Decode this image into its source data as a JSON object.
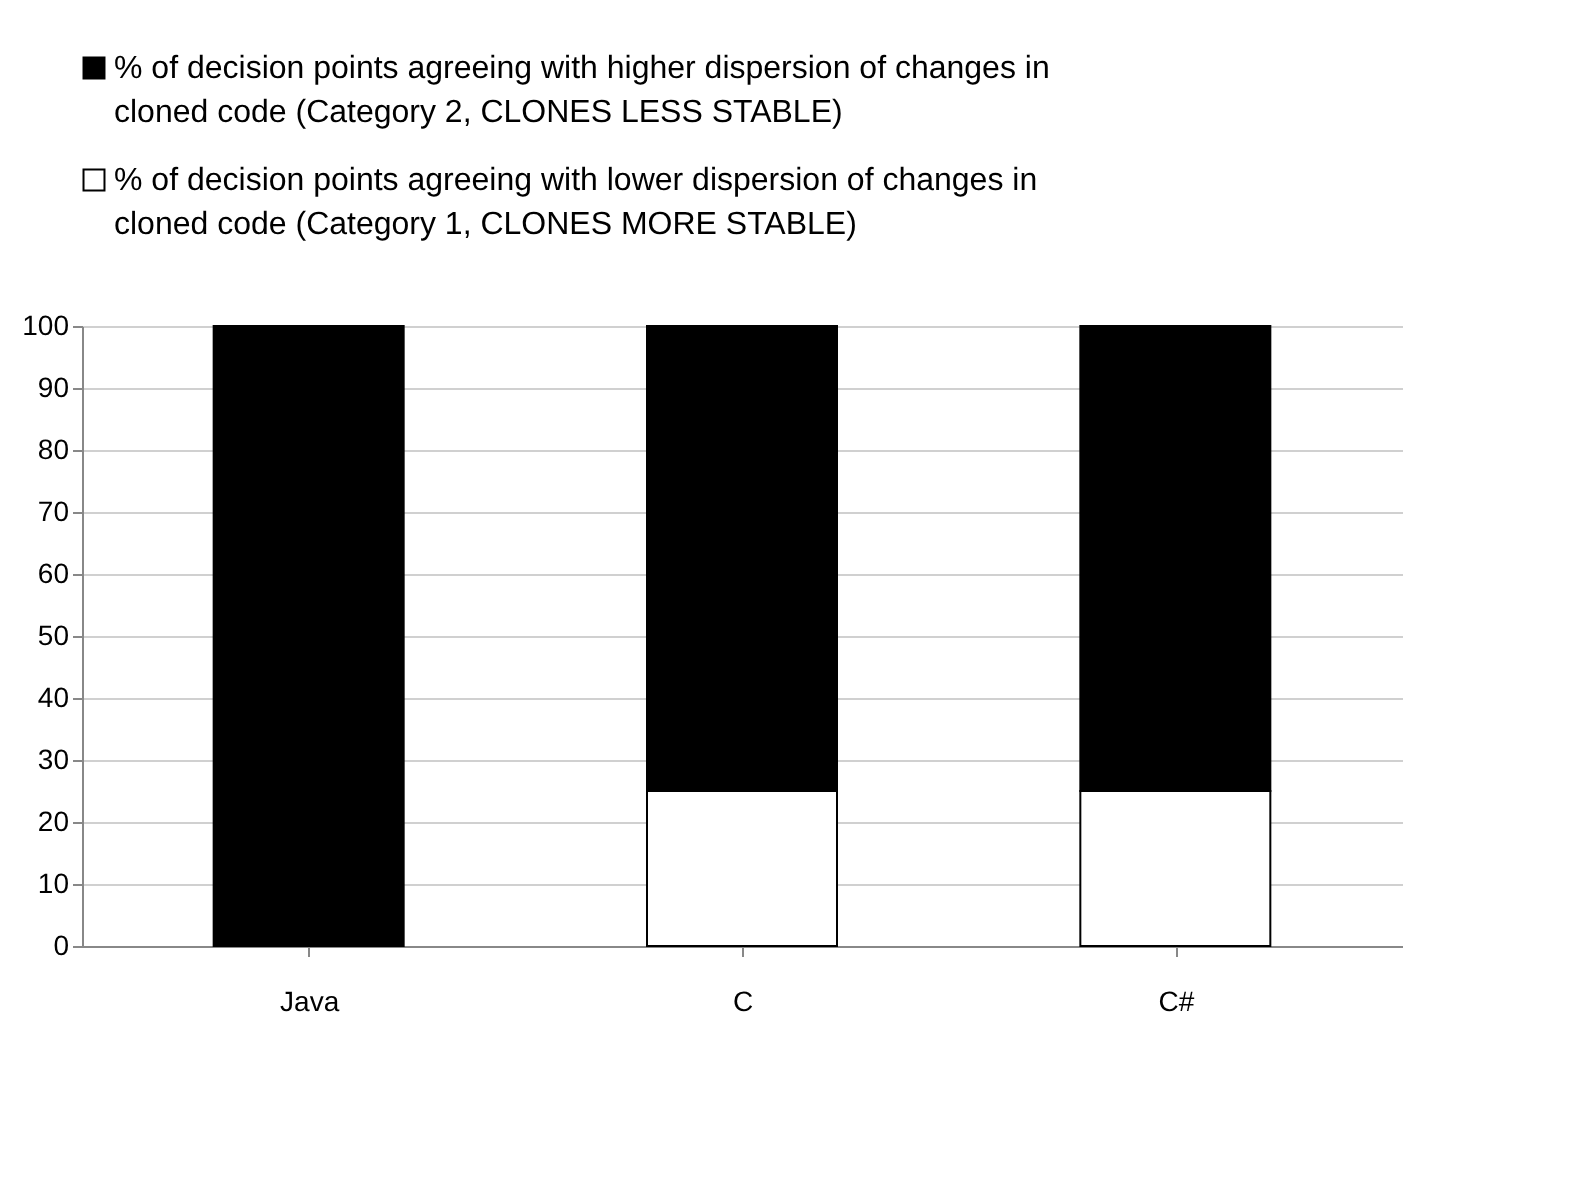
{
  "chart_data": {
    "type": "bar",
    "stacked": true,
    "legend": "top",
    "grid": "y",
    "categories": [
      "Java",
      "C",
      "C#"
    ],
    "series": [
      {
        "name": "% of decision points agreeing with lower dispersion of changes in cloned code (Category 1, CLONES MORE STABLE)",
        "color": "#ffffff",
        "values": [
          0,
          25,
          25
        ]
      },
      {
        "name": "% of decision points agreeing with higher dispersion of changes in cloned code (Category 2,  CLONES LESS STABLE)",
        "color": "#000000",
        "values": [
          100,
          75,
          75
        ]
      }
    ],
    "ylim": [
      0,
      100
    ],
    "yticks": [
      0,
      10,
      20,
      30,
      40,
      50,
      60,
      70,
      80,
      90,
      100
    ]
  }
}
